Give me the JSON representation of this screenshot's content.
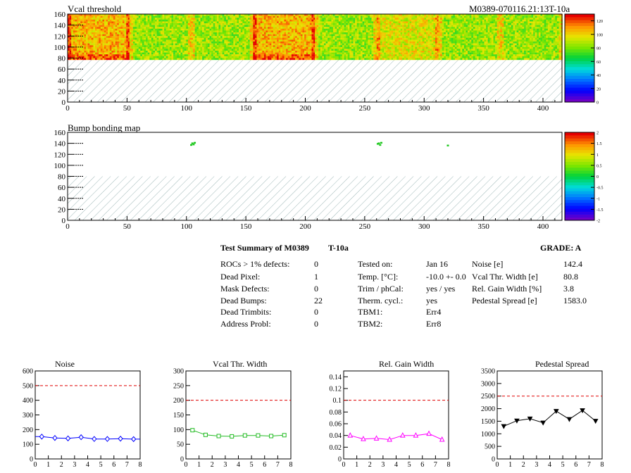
{
  "colors": {
    "red_dashed": "#e00000",
    "noise_series": "#0000ff",
    "vcal_series": "#22bb22",
    "gain_series": "#ff00ff",
    "pedestal_series": "#000000"
  },
  "panels": {
    "vcal_title": "Vcal threshold",
    "module_id": "M0389-070116.21:13T-10a",
    "bump_title": "Bump bonding map"
  },
  "summary": {
    "title": "Test Summary of M0389",
    "test": "T-10a",
    "grade": "GRADE:  A",
    "rows": [
      {
        "label": "ROCs > 1% defects:",
        "value": "0"
      },
      {
        "label": "Dead Pixel:",
        "value": "1"
      },
      {
        "label": "Mask Defects:",
        "value": "0"
      },
      {
        "label": "Dead Bumps:",
        "value": "22"
      },
      {
        "label": "Dead Trimbits:",
        "value": "0"
      },
      {
        "label": "Address Probl:",
        "value": "0"
      }
    ],
    "cond": [
      {
        "label": "Tested on:",
        "value": "Jan 16"
      },
      {
        "label": "Temp. [°C]:",
        "value": "-10.0 +- 0.0"
      },
      {
        "label": "Trim / phCal:",
        "value": "yes / yes"
      },
      {
        "label": "Therm. cycl.:",
        "value": "yes"
      },
      {
        "label": "TBM1:",
        "value": "Err4"
      },
      {
        "label": "TBM2:",
        "value": "Err8"
      }
    ],
    "meas": [
      {
        "label": "Noise [e]",
        "value": "142.4"
      },
      {
        "label": "Vcal Thr. Width [e]",
        "value": "80.8"
      },
      {
        "label": "Rel. Gain Width [%]",
        "value": "3.8"
      },
      {
        "label": "Pedestal Spread [e]",
        "value": "1583.0"
      }
    ]
  },
  "chart_data": [
    {
      "type": "heatmap",
      "title": "Vcal threshold",
      "xlim": [
        0,
        416
      ],
      "ylim": [
        0,
        160
      ],
      "x_ticks": [
        "0",
        "50",
        "100",
        "150",
        "200",
        "250",
        "300",
        "350",
        "400"
      ],
      "y_ticks": [
        "0",
        "20",
        "40",
        "60",
        "80",
        "100",
        "120",
        "140",
        "160"
      ],
      "colorbar_ticks": [
        "0",
        "20",
        "40",
        "60",
        "80",
        "100",
        "120"
      ],
      "colorbar_range": [
        0,
        130
      ],
      "filled_y_range": [
        80,
        160
      ],
      "column_bands": [
        {
          "x": [
            0,
            52
          ],
          "level": "high"
        },
        {
          "x": [
            52,
            104
          ],
          "level": "medium"
        },
        {
          "x": [
            104,
            156
          ],
          "level": "medium"
        },
        {
          "x": [
            156,
            208
          ],
          "level": "high"
        },
        {
          "x": [
            208,
            260
          ],
          "level": "medium"
        },
        {
          "x": [
            260,
            312
          ],
          "level": "medium-high"
        },
        {
          "x": [
            312,
            364
          ],
          "level": "medium"
        },
        {
          "x": [
            364,
            416
          ],
          "level": "medium"
        }
      ]
    },
    {
      "type": "heatmap",
      "title": "Bump bonding map",
      "xlim": [
        0,
        416
      ],
      "ylim": [
        0,
        160
      ],
      "x_ticks": [
        "0",
        "50",
        "100",
        "150",
        "200",
        "250",
        "300",
        "350",
        "400"
      ],
      "y_ticks": [
        "0",
        "20",
        "40",
        "60",
        "80",
        "100",
        "120",
        "140",
        "160"
      ],
      "colorbar_ticks": [
        "-2",
        "-1.5",
        "-1",
        "-0.5",
        "0",
        "0.5",
        "1",
        "1.5",
        "2"
      ],
      "colorbar_range": [
        -2,
        2
      ],
      "filled_y_range": [
        80,
        160
      ],
      "points": [
        {
          "x": 105,
          "y": 140
        },
        {
          "x": 106,
          "y": 138
        },
        {
          "x": 107,
          "y": 141
        },
        {
          "x": 104,
          "y": 137
        },
        {
          "x": 262,
          "y": 140
        },
        {
          "x": 263,
          "y": 137
        },
        {
          "x": 261,
          "y": 139
        },
        {
          "x": 264,
          "y": 141
        },
        {
          "x": 320,
          "y": 136
        }
      ]
    },
    {
      "type": "line",
      "title": "Noise",
      "x": [
        0.5,
        1.5,
        2.5,
        3.5,
        4.5,
        5.5,
        6.5,
        7.5
      ],
      "values": [
        152,
        143,
        140,
        148,
        136,
        136,
        138,
        135
      ],
      "xlim": [
        0,
        8
      ],
      "ylim": [
        0,
        600
      ],
      "threshold": 500,
      "y_ticks": [
        "0",
        "100",
        "200",
        "300",
        "400",
        "500",
        "600"
      ],
      "x_ticks": [
        "0",
        "1",
        "2",
        "3",
        "4",
        "5",
        "6",
        "7",
        "8"
      ]
    },
    {
      "type": "line",
      "title": "Vcal Thr. Width",
      "x": [
        0.5,
        1.5,
        2.5,
        3.5,
        4.5,
        5.5,
        6.5,
        7.5
      ],
      "values": [
        98,
        82,
        78,
        77,
        80,
        80,
        78,
        81
      ],
      "xlim": [
        0,
        8
      ],
      "ylim": [
        0,
        300
      ],
      "threshold": 200,
      "y_ticks": [
        "0",
        "50",
        "100",
        "150",
        "200",
        "250",
        "300"
      ],
      "x_ticks": [
        "0",
        "1",
        "2",
        "3",
        "4",
        "5",
        "6",
        "7",
        "8"
      ]
    },
    {
      "type": "line",
      "title": "Rel. Gain Width",
      "x": [
        0.5,
        1.5,
        2.5,
        3.5,
        4.5,
        5.5,
        6.5,
        7.5
      ],
      "values": [
        0.04,
        0.034,
        0.035,
        0.033,
        0.04,
        0.04,
        0.043,
        0.033
      ],
      "xlim": [
        0,
        8
      ],
      "ylim": [
        0,
        0.15
      ],
      "threshold": 0.1,
      "y_ticks": [
        "0",
        "0.02",
        "0.04",
        "0.06",
        "0.08",
        "0.1",
        "0.12",
        "0.14"
      ],
      "x_ticks": [
        "0",
        "1",
        "2",
        "3",
        "4",
        "5",
        "6",
        "7",
        "8"
      ]
    },
    {
      "type": "line",
      "title": "Pedestal Spread",
      "x": [
        0.5,
        1.5,
        2.5,
        3.5,
        4.5,
        5.5,
        6.5,
        7.5
      ],
      "values": [
        1300,
        1520,
        1600,
        1440,
        1900,
        1580,
        1930,
        1510
      ],
      "xlim": [
        0,
        8
      ],
      "ylim": [
        0,
        3500
      ],
      "threshold": 2500,
      "y_ticks": [
        "0",
        "500",
        "1000",
        "1500",
        "2000",
        "2500",
        "3000",
        "3500"
      ],
      "x_ticks": [
        "0",
        "1",
        "2",
        "3",
        "4",
        "5",
        "6",
        "7",
        "8"
      ]
    }
  ]
}
